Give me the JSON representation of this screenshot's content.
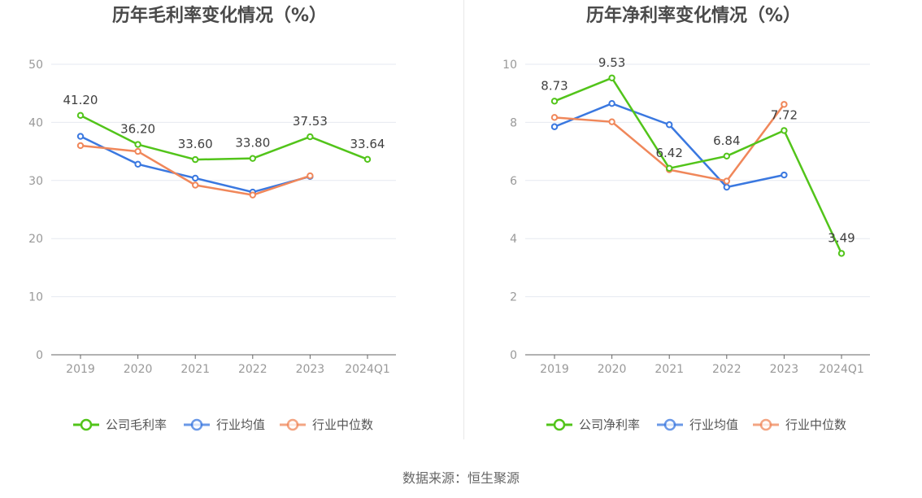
{
  "chart_data": [
    {
      "type": "line",
      "title": "历年毛利率变化情况（%）",
      "categories": [
        "2019",
        "2020",
        "2021",
        "2022",
        "2023",
        "2024Q1"
      ],
      "ylim": [
        0,
        50
      ],
      "yticks": [
        0,
        10,
        20,
        30,
        40,
        50
      ],
      "grid": true,
      "legend_position": "bottom",
      "series": [
        {
          "name": "公司毛利率",
          "color": "#52c41a",
          "values": [
            41.2,
            36.2,
            33.6,
            33.8,
            37.53,
            33.64
          ],
          "labels": [
            "41.20",
            "36.20",
            "33.60",
            "33.80",
            "37.53",
            "33.64"
          ]
        },
        {
          "name": "行业均值",
          "color": "#3a78e0",
          "values": [
            37.6,
            32.8,
            30.4,
            28.0,
            30.7,
            null
          ]
        },
        {
          "name": "行业中位数",
          "color": "#f0875a",
          "values": [
            36.0,
            35.0,
            29.2,
            27.5,
            30.8,
            null
          ]
        }
      ]
    },
    {
      "type": "line",
      "title": "历年净利率变化情况（%）",
      "categories": [
        "2019",
        "2020",
        "2021",
        "2022",
        "2023",
        "2024Q1"
      ],
      "ylim": [
        0,
        10
      ],
      "yticks": [
        0,
        2,
        4,
        6,
        8,
        10
      ],
      "grid": true,
      "legend_position": "bottom",
      "series": [
        {
          "name": "公司净利率",
          "color": "#52c41a",
          "values": [
            8.73,
            9.53,
            6.42,
            6.84,
            7.72,
            3.49
          ],
          "labels": [
            "8.73",
            "9.53",
            "6.42",
            "6.84",
            "7.72",
            "3.49"
          ]
        },
        {
          "name": "行业均值",
          "color": "#3a78e0",
          "values": [
            7.85,
            8.65,
            7.92,
            5.77,
            6.19,
            null
          ]
        },
        {
          "name": "行业中位数",
          "color": "#f0875a",
          "values": [
            8.17,
            8.02,
            6.37,
            5.98,
            8.62,
            null
          ]
        }
      ]
    }
  ],
  "footer": {
    "source": "数据来源：恒生聚源"
  }
}
